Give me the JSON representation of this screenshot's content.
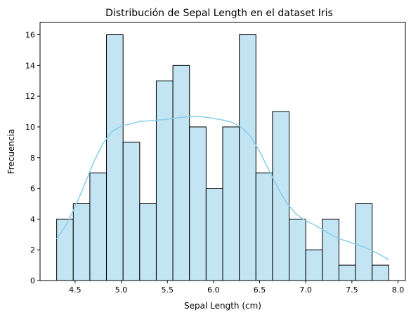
{
  "chart_data": {
    "type": "bar",
    "title": "Distribución de Sepal Length en el dataset Iris",
    "xlabel": "Sepal Length (cm)",
    "ylabel": "Frecuencia",
    "xlim": [
      4.12,
      8.08
    ],
    "ylim": [
      0,
      16.8
    ],
    "x_ticks": [
      "4.5",
      "5.0",
      "5.5",
      "6.0",
      "6.5",
      "7.0",
      "7.5",
      "8.0"
    ],
    "x_tick_values": [
      4.5,
      5.0,
      5.5,
      6.0,
      6.5,
      7.0,
      7.5,
      8.0
    ],
    "y_ticks": [
      "0",
      "2",
      "4",
      "6",
      "8",
      "10",
      "12",
      "14",
      "16"
    ],
    "y_tick_values": [
      0,
      2,
      4,
      6,
      8,
      10,
      12,
      14,
      16
    ],
    "bin_edges": [
      4.3,
      4.48,
      4.66,
      4.84,
      5.02,
      5.2,
      5.38,
      5.56,
      5.74,
      5.92,
      6.1,
      6.28,
      6.46,
      6.64,
      6.82,
      7.0,
      7.18,
      7.36,
      7.54,
      7.72,
      7.9
    ],
    "values": [
      4,
      5,
      7,
      16,
      9,
      5,
      13,
      14,
      10,
      6,
      10,
      16,
      7,
      11,
      4,
      2,
      4,
      1,
      5,
      1
    ],
    "kde": {
      "x": [
        4.3,
        4.4,
        4.5,
        4.6,
        4.7,
        4.8,
        4.9,
        5.0,
        5.1,
        5.2,
        5.3,
        5.4,
        5.5,
        5.6,
        5.7,
        5.8,
        5.9,
        6.0,
        6.1,
        6.2,
        6.3,
        6.4,
        6.5,
        6.6,
        6.7,
        6.8,
        6.9,
        7.0,
        7.1,
        7.2,
        7.3,
        7.4,
        7.5,
        7.6,
        7.7,
        7.8,
        7.9
      ],
      "y": [
        2.7,
        3.6,
        4.8,
        6.2,
        7.7,
        8.9,
        9.7,
        10.05,
        10.2,
        10.35,
        10.4,
        10.45,
        10.5,
        10.58,
        10.65,
        10.7,
        10.65,
        10.55,
        10.45,
        10.3,
        10.0,
        9.4,
        8.4,
        7.2,
        6.0,
        5.0,
        4.3,
        3.9,
        3.6,
        3.25,
        2.9,
        2.65,
        2.45,
        2.25,
        2.0,
        1.7,
        1.35
      ]
    },
    "colors": {
      "bar_fill": "#c3e4f3",
      "bar_edge": "#000000",
      "kde_line": "#87ceeb"
    },
    "grid": false,
    "legend": "none"
  }
}
